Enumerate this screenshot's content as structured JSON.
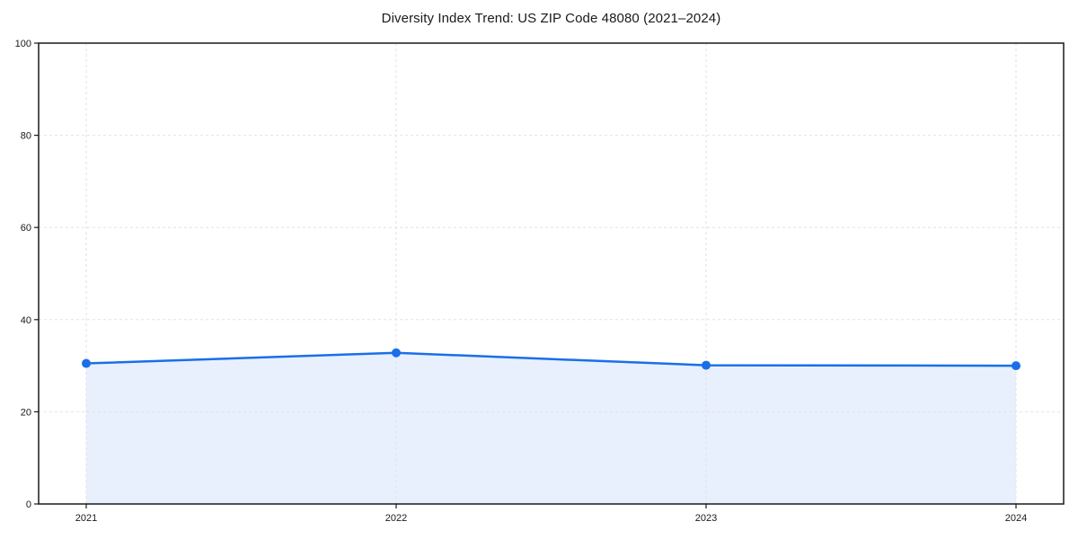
{
  "chart_data": {
    "type": "area",
    "title": "Diversity Index Trend: US ZIP Code 48080 (2021–2024)",
    "categories": [
      "2021",
      "2022",
      "2023",
      "2024"
    ],
    "series": [
      {
        "name": "Diversity Index",
        "values": [
          30.5,
          32.8,
          30.1,
          30.0
        ]
      }
    ],
    "xlabel": "",
    "ylabel": "",
    "ylim": [
      0,
      100
    ],
    "yticks": [
      0,
      20,
      40,
      60,
      80,
      100
    ],
    "grid": true,
    "grid_style": "dashed",
    "legend_position": "none",
    "marker": "circle",
    "colors": {
      "line": "#1a6fe8",
      "fill": "#e8f0fd",
      "grid": "#e2e2e2",
      "spine": "#1a1a1a",
      "text": "#1a1a1a",
      "background": "#ffffff"
    }
  }
}
